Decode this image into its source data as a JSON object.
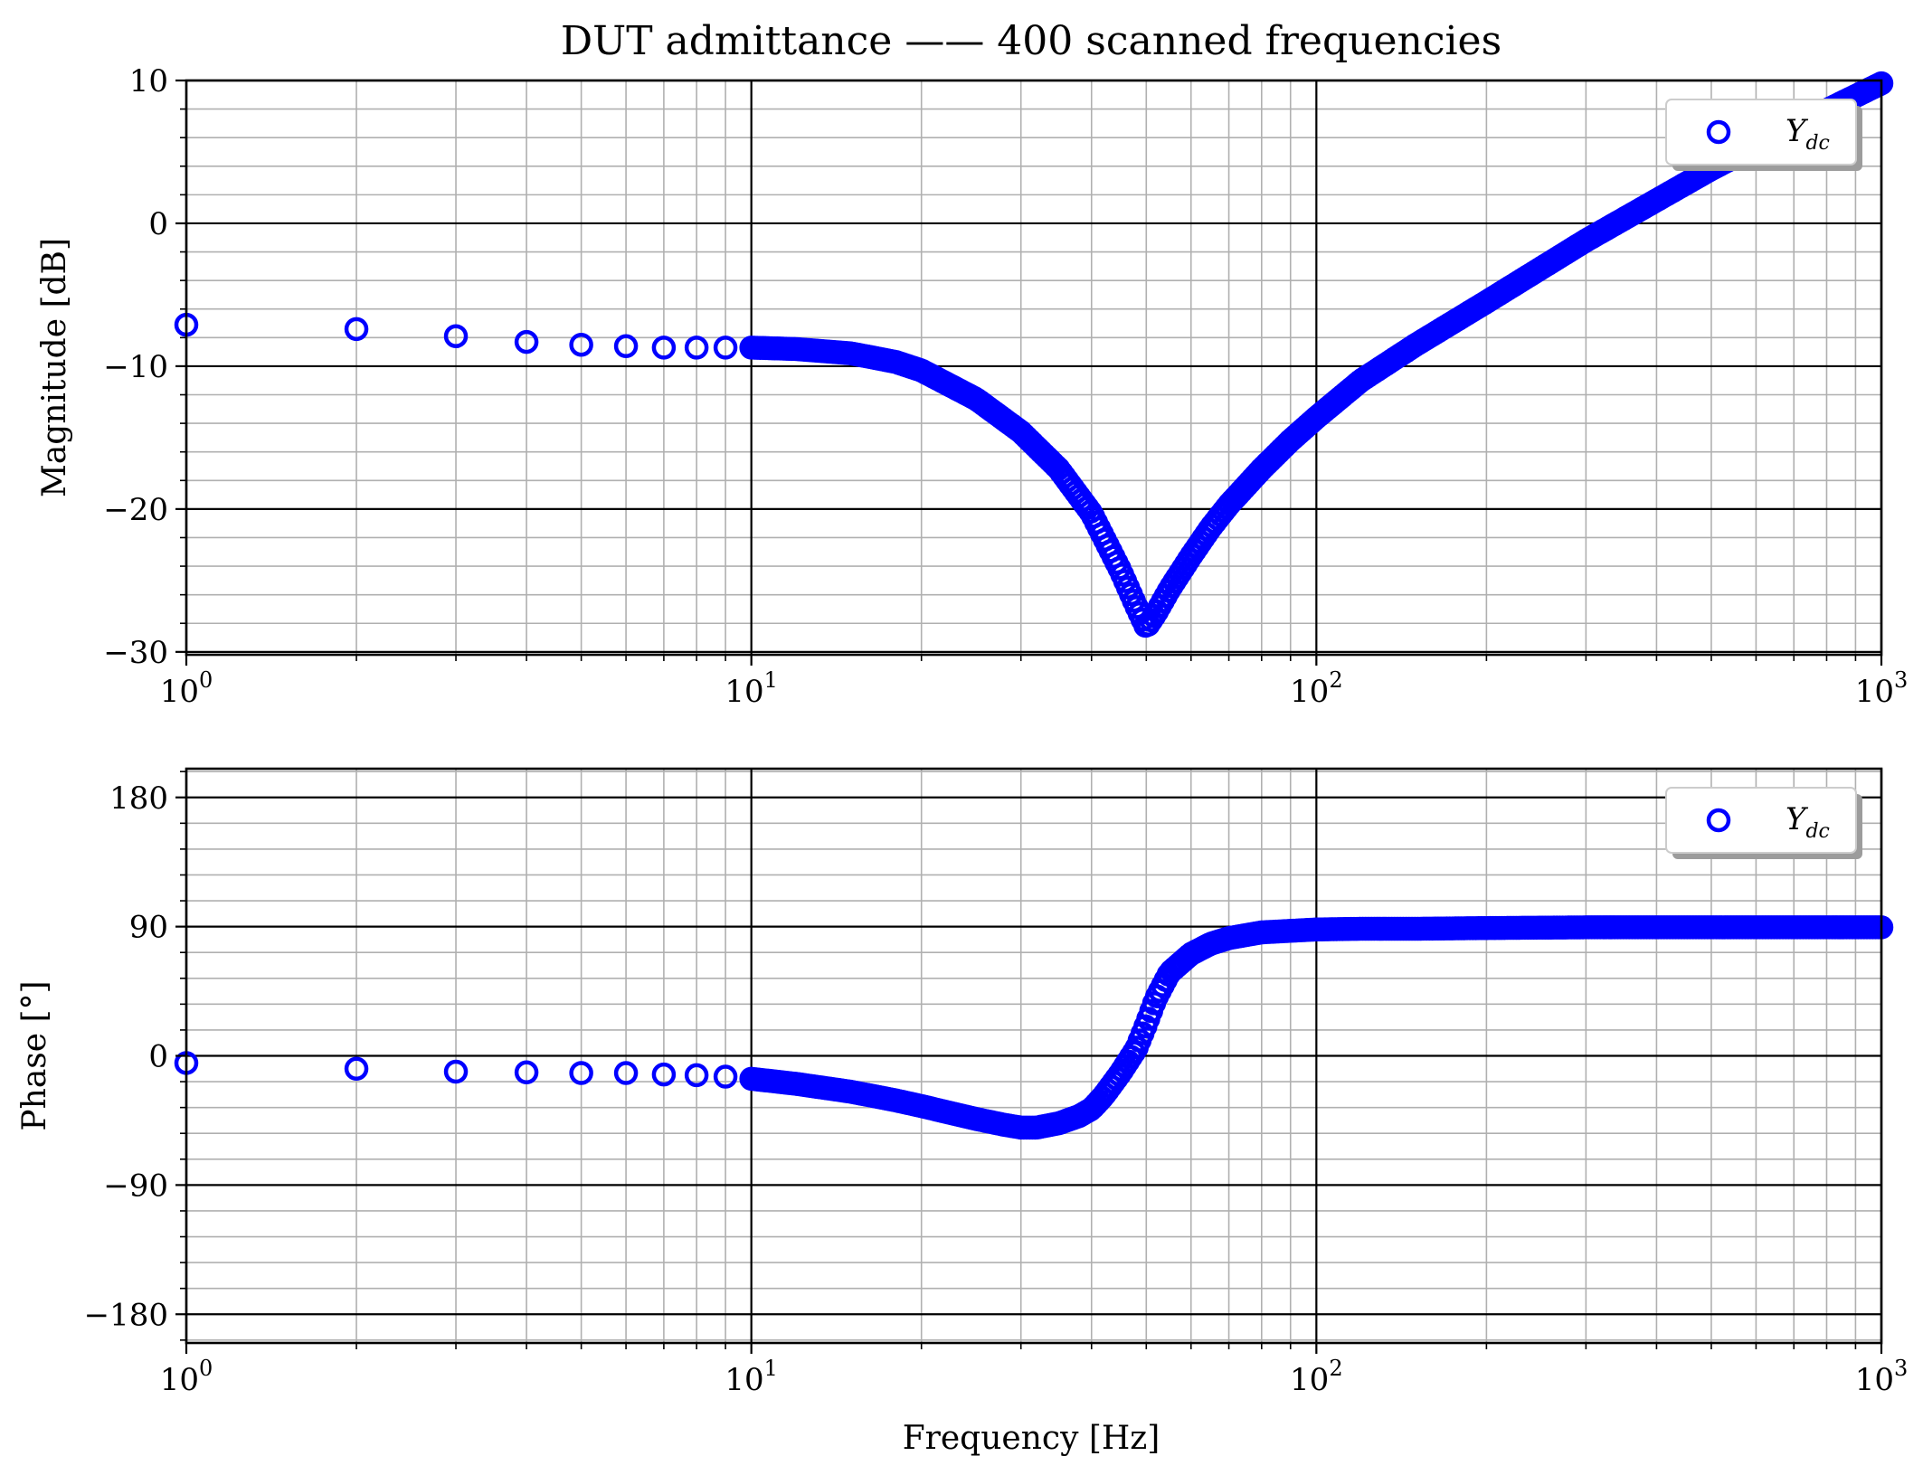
{
  "chart_data": {
    "type": "scatter",
    "title": "DUT admittance —— 400 scanned frequencies",
    "xlabel": "Frequency [Hz]",
    "xscale": "log",
    "xlim": [
      1,
      1000
    ],
    "x_tick_labels": [
      {
        "base": "10",
        "exp": "0"
      },
      {
        "base": "10",
        "exp": "1"
      },
      {
        "base": "10",
        "exp": "2"
      },
      {
        "base": "10",
        "exp": "3"
      }
    ],
    "grid": "major and minor",
    "legend_position": "top-right",
    "series_color": "#0000ff",
    "marker": "open-circle",
    "x": [
      1,
      1000
    ],
    "subplots": [
      {
        "ylabel": "Magnitude [dB]",
        "ylim": [
          -30.2,
          10
        ],
        "yticks": [
          10,
          0,
          -10,
          -20,
          -30
        ],
        "ytick_labels": [
          "10",
          "0",
          "−10",
          "−20",
          "−30"
        ],
        "legend": {
          "main": "Y",
          "sub": "dc"
        },
        "series": [
          {
            "name": "Y_dc",
            "x": [
              1,
              2,
              3,
              4,
              5,
              6,
              7,
              8,
              9,
              10,
              12,
              15,
              18,
              20,
              25,
              30,
              35,
              40,
              45,
              48,
              50,
              52,
              55,
              60,
              65,
              70,
              80,
              90,
              100,
              120,
              150,
              200,
              300,
              500,
              700,
              1000
            ],
            "y": [
              -7.1,
              -7.4,
              -7.9,
              -8.3,
              -8.5,
              -8.6,
              -8.7,
              -8.7,
              -8.7,
              -8.7,
              -8.8,
              -9.1,
              -9.7,
              -10.3,
              -12.3,
              -14.6,
              -17.2,
              -20.3,
              -24.3,
              -26.8,
              -28.3,
              -27.3,
              -25.6,
              -23.3,
              -21.3,
              -19.7,
              -17.2,
              -15.2,
              -13.6,
              -11.0,
              -8.5,
              -5.5,
              -1.2,
              3.8,
              6.8,
              9.8
            ]
          }
        ]
      },
      {
        "ylabel": "Phase [°]",
        "ylim": [
          -200,
          200
        ],
        "yticks": [
          180,
          90,
          0,
          -90,
          -180
        ],
        "ytick_labels": [
          "180",
          "90",
          "0",
          "−90",
          "−180"
        ],
        "legend": {
          "main": "Y",
          "sub": "dc"
        },
        "series": [
          {
            "name": "Y_dc",
            "x": [
              1,
              2,
              3,
              4,
              5,
              6,
              7,
              8,
              9,
              10,
              12,
              15,
              18,
              20,
              25,
              28,
              30,
              32,
              35,
              38,
              40,
              42,
              45,
              48,
              50,
              52,
              55,
              60,
              65,
              70,
              80,
              100,
              120,
              150,
              200,
              300,
              500,
              1000
            ],
            "y": [
              -5,
              -9,
              -11,
              -11.5,
              -12,
              -12,
              -13,
              -13.5,
              -14.5,
              -16,
              -19.5,
              -25,
              -31,
              -35,
              -44,
              -48,
              -50,
              -50,
              -47,
              -42,
              -37,
              -28,
              -12,
              5,
              22,
              40,
              58,
              71,
              78,
              82,
              86,
              88,
              88.5,
              88.5,
              89,
              89.5,
              89.5,
              89.5
            ]
          }
        ]
      }
    ]
  }
}
